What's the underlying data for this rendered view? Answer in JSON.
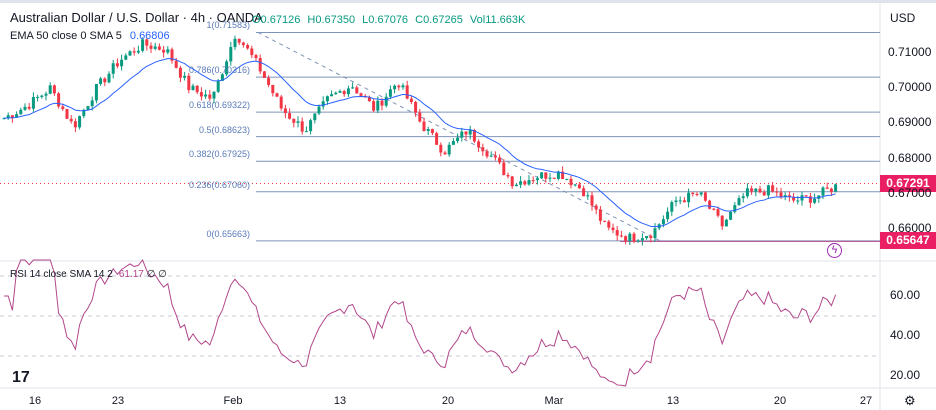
{
  "header": {
    "title": "Australian Dollar / U.S. Dollar · 4h · OANDA",
    "open": "O0.67126",
    "high": "H0.67350",
    "low": "L0.67076",
    "close": "C0.67265",
    "volume": "Vol11.663K"
  },
  "indicator": {
    "label": "EMA 50 close 0 SMA 5",
    "value": "0.66806"
  },
  "rsi": {
    "label": "RSI 14 close SMA 14 2",
    "value": "61.17",
    "extra": "∅ ∅"
  },
  "currency": "USD",
  "price_tags": {
    "current": "0.67291",
    "low": "0.65647"
  },
  "colors": {
    "up": "#089981",
    "down": "#f23645",
    "ema": "#2962ff",
    "rsi": "#b2478b",
    "tag": "#e91e63",
    "fib": "#7f93b8"
  },
  "chart_data": {
    "type": "candlestick",
    "x_range": [
      "2023-01-13",
      "2023-03-24"
    ],
    "x_ticks": [
      "16",
      "23",
      "Feb",
      "13",
      "20",
      "Mar",
      "13",
      "20",
      "27"
    ],
    "y_range": [
      0.6525,
      0.72
    ],
    "y_ticks": [
      "0.71000",
      "0.70000",
      "0.69000",
      "0.68000",
      "0.67000",
      "0.66000"
    ],
    "rsi_ticks": [
      "60.00",
      "40.00",
      "20.00"
    ],
    "rsi_bands": [
      70,
      30
    ],
    "closes": [
      0.6915,
      0.695,
      0.7,
      0.689,
      0.7,
      0.708,
      0.7125,
      0.711,
      0.7,
      0.697,
      0.7158,
      0.706,
      0.694,
      0.688,
      0.697,
      0.701,
      0.694,
      0.702,
      0.69,
      0.682,
      0.688,
      0.681,
      0.673,
      0.675,
      0.676,
      0.671,
      0.66,
      0.6575,
      0.659,
      0.668,
      0.67,
      0.661,
      0.67,
      0.671,
      0.668,
      0.669,
      0.6727
    ],
    "fib_levels": [
      {
        "label": "1(0.71583)",
        "price": 0.71583
      },
      {
        "label": "0.786(0.70316)",
        "price": 0.70316
      },
      {
        "label": "0.618(0.69322)",
        "price": 0.69322
      },
      {
        "label": "0.5(0.68623)",
        "price": 0.68623
      },
      {
        "label": "0.382(0.67925)",
        "price": 0.67925
      },
      {
        "label": "0.236(0.67060)",
        "price": 0.6706
      },
      {
        "label": "0(0.65663)",
        "price": 0.65663
      }
    ],
    "current_price": 0.67291,
    "support_line": 0.65647
  }
}
